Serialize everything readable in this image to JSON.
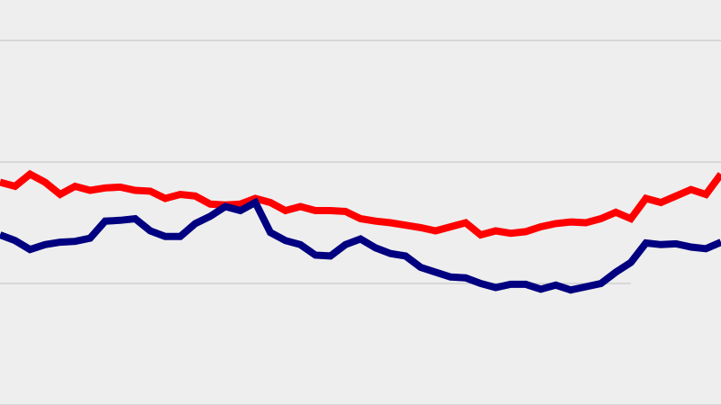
{
  "chart_data": {
    "type": "line",
    "title": "",
    "xlabel": "",
    "ylabel": "",
    "grid": true,
    "gridlines_y": [
      0.5,
      0.65,
      0.8,
      0.95
    ],
    "ylim": [
      0.5,
      1.0
    ],
    "x": [
      0,
      1,
      2,
      3,
      4,
      5,
      6,
      7,
      8,
      9,
      10,
      11,
      12,
      13,
      14,
      15,
      16,
      17,
      18,
      19,
      20,
      21,
      22,
      23,
      24,
      25,
      26,
      27,
      28,
      29,
      30,
      31,
      32,
      33,
      34,
      35,
      36,
      37,
      38,
      39,
      40,
      41,
      42,
      43,
      44,
      45,
      46,
      47,
      48
    ],
    "series": [
      {
        "color": "#ff0000",
        "values": [
          0.775,
          0.77,
          0.785,
          0.775,
          0.76,
          0.77,
          0.765,
          0.768,
          0.769,
          0.765,
          0.764,
          0.755,
          0.76,
          0.758,
          0.748,
          0.747,
          0.748,
          0.755,
          0.75,
          0.74,
          0.745,
          0.74,
          0.74,
          0.739,
          0.73,
          0.727,
          0.725,
          0.722,
          0.719,
          0.715,
          0.72,
          0.725,
          0.71,
          0.715,
          0.712,
          0.714,
          0.72,
          0.724,
          0.726,
          0.725,
          0.73,
          0.738,
          0.73,
          0.755,
          0.75,
          0.758,
          0.766,
          0.76,
          0.785
        ]
      },
      {
        "color": "#000080",
        "values": [
          0.71,
          0.703,
          0.692,
          0.698,
          0.701,
          0.702,
          0.706,
          0.727,
          0.728,
          0.73,
          0.715,
          0.708,
          0.708,
          0.724,
          0.733,
          0.745,
          0.74,
          0.75,
          0.713,
          0.703,
          0.698,
          0.685,
          0.684,
          0.698,
          0.705,
          0.694,
          0.687,
          0.684,
          0.67,
          0.664,
          0.658,
          0.657,
          0.65,
          0.645,
          0.649,
          0.649,
          0.643,
          0.648,
          0.642,
          0.646,
          0.65,
          0.664,
          0.676,
          0.7,
          0.698,
          0.699,
          0.695,
          0.693,
          0.701
        ]
      }
    ]
  }
}
